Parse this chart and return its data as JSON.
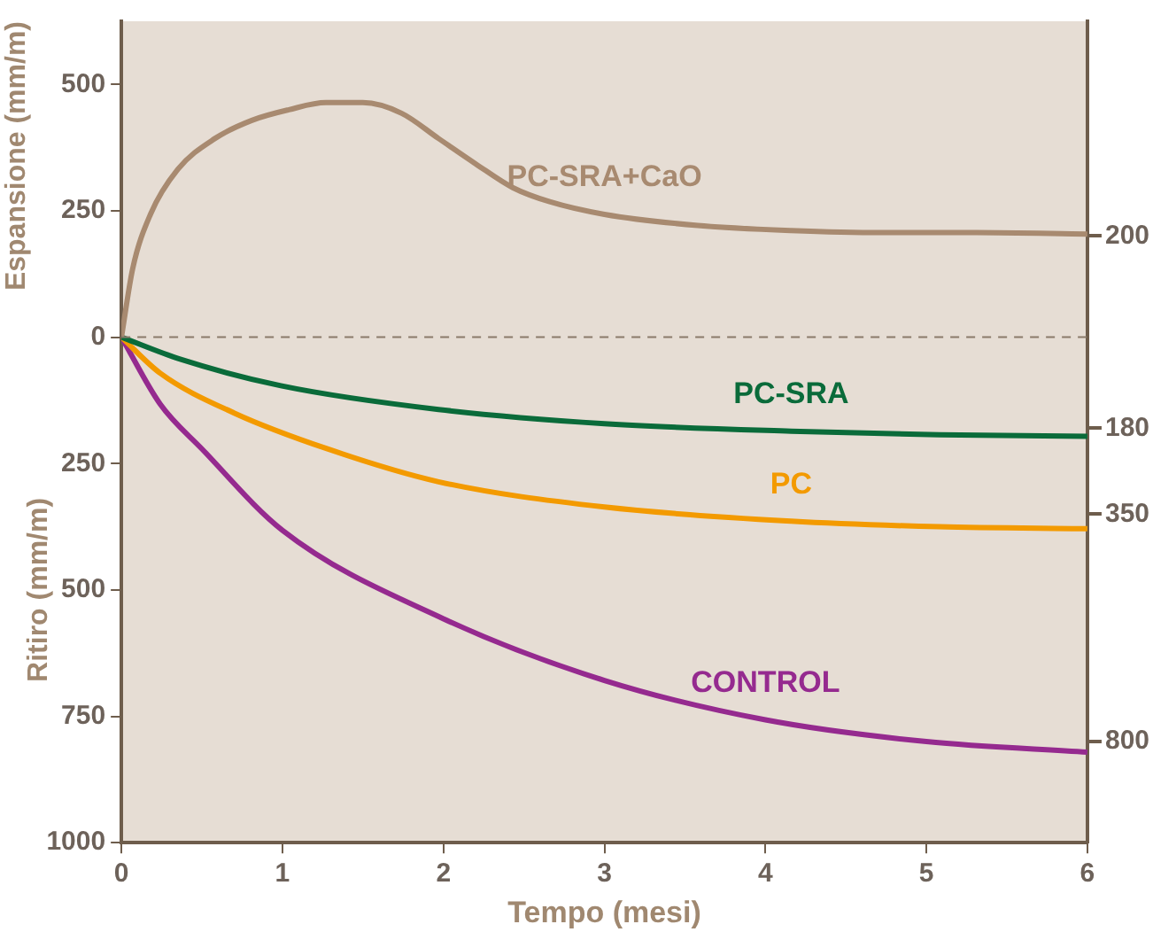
{
  "chart_data": {
    "type": "line",
    "xlabel": "Tempo (mesi)",
    "ylabel": "Espansione (mm/m)",
    "annotations": [
      "Ritiro (mm/m)"
    ],
    "xlim": [
      0,
      6
    ],
    "xticks": [
      0,
      1,
      2,
      3,
      4,
      5,
      6
    ],
    "ylim": [
      -1000,
      625
    ],
    "yticks": [
      {
        "value": -1000,
        "label": "1000"
      },
      {
        "value": -750,
        "label": "750"
      },
      {
        "value": -500,
        "label": "500"
      },
      {
        "value": -250,
        "label": "250"
      },
      0,
      250,
      500
    ],
    "y2lim": [
      -1000,
      625
    ],
    "y2ticks": [
      {
        "value": 200,
        "label": "200"
      },
      {
        "value": -180,
        "label": "180"
      },
      {
        "value": -350,
        "label": "350"
      },
      {
        "value": -800,
        "label": "800"
      }
    ],
    "grid": false,
    "legend": false,
    "marker": "none",
    "line_style": "solid",
    "ref_lines": [
      {
        "axis": "y",
        "value": 0,
        "color": "#8a7a6a",
        "line_style": "dashed"
      }
    ],
    "series": [
      {
        "name": "PC-SRA+CaO",
        "color": "#a88a70",
        "x": [
          0,
          0.07,
          0.18,
          0.35,
          0.58,
          0.81,
          1.04,
          1.27,
          1.5,
          1.74,
          1.97,
          2.2,
          2.43,
          2.66,
          3,
          3.58,
          4.16,
          4.73,
          5.31,
          6
        ],
        "values": [
          0,
          136,
          243,
          332,
          393,
          429,
          450,
          464,
          464,
          443,
          393,
          343,
          296,
          268,
          243,
          221,
          211,
          207,
          207,
          204
        ]
      },
      {
        "name": "PC-SRA",
        "color": "#0a6b3a",
        "x": [
          0,
          0.36,
          0.99,
          1.97,
          3,
          4.16,
          5.08,
          6
        ],
        "values": [
          0,
          -43,
          -96,
          -143,
          -171,
          -186,
          -193,
          -196
        ]
      },
      {
        "name": "PC",
        "color": "#f39a00",
        "x": [
          0,
          0.24,
          0.7,
          1.28,
          1.97,
          3,
          4.16,
          5.08,
          6
        ],
        "values": [
          0,
          -71,
          -150,
          -221,
          -286,
          -336,
          -364,
          -375,
          -379
        ]
      },
      {
        "name": "CONTROL",
        "color": "#952a8f",
        "x": [
          0,
          0.24,
          0.5,
          1,
          2,
          3,
          4,
          5,
          6
        ],
        "values": [
          0,
          -132,
          -221,
          -382,
          -557,
          -679,
          -757,
          -800,
          -821
        ]
      }
    ]
  }
}
